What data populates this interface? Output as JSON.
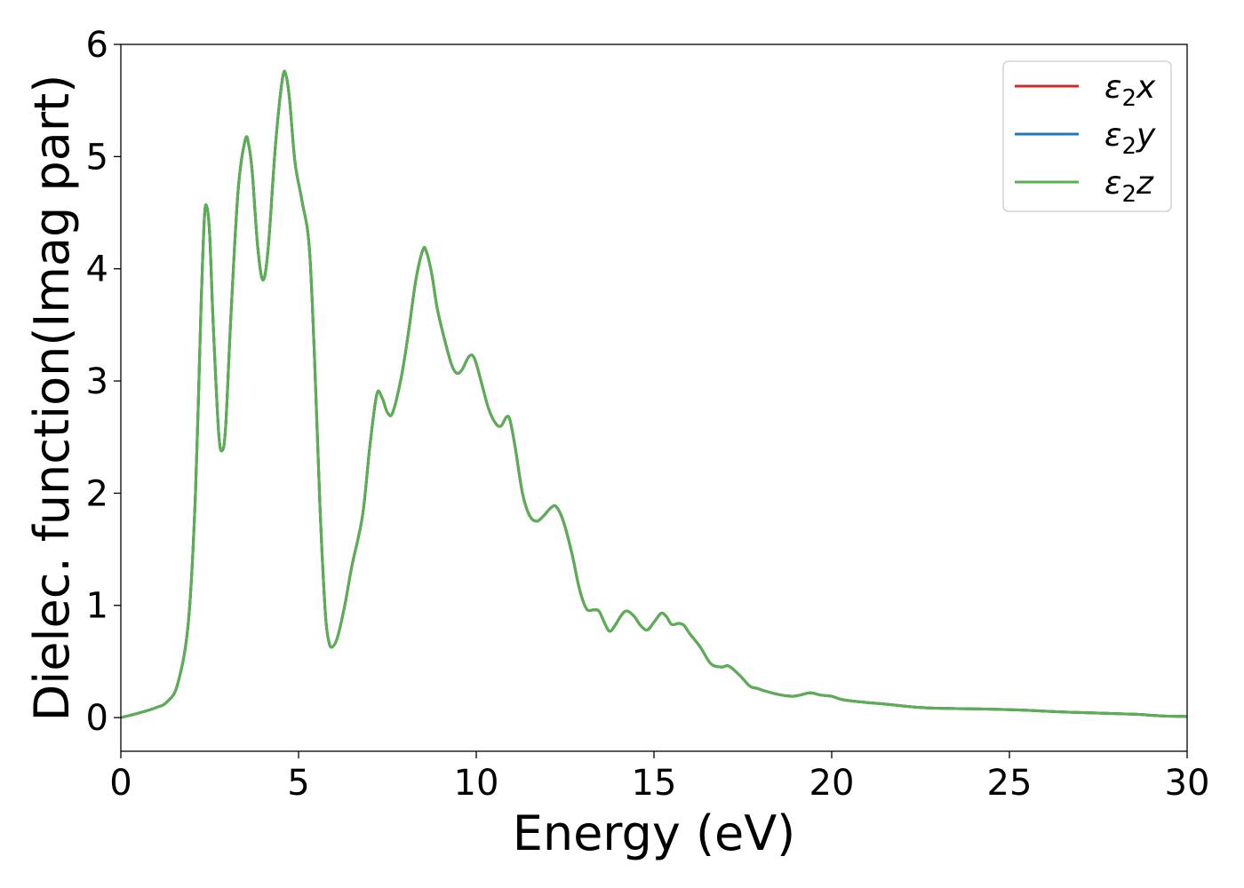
{
  "chart_data": {
    "type": "line",
    "xlabel": "Energy (eV)",
    "ylabel": "Dielec. function(Imag part)",
    "xlim": [
      0,
      30
    ],
    "ylim": [
      -0.3,
      6
    ],
    "xticks": [
      0,
      5,
      10,
      15,
      20,
      25,
      30
    ],
    "yticks": [
      0,
      1,
      2,
      3,
      4,
      5,
      6
    ],
    "grid": false,
    "legend_position": "top-right",
    "series": [
      {
        "name": "ε₂x",
        "legend": {
          "sym": "ε",
          "sub": "2",
          "axis": "x"
        },
        "color": "#d62728",
        "points": [
          [
            0,
            0
          ],
          [
            0.5,
            0.04
          ],
          [
            1,
            0.09
          ],
          [
            1.3,
            0.14
          ],
          [
            1.6,
            0.3
          ],
          [
            1.9,
            0.85
          ],
          [
            2.1,
            2.0
          ],
          [
            2.25,
            3.6
          ],
          [
            2.35,
            4.45
          ],
          [
            2.42,
            4.55
          ],
          [
            2.5,
            4.3
          ],
          [
            2.6,
            3.5
          ],
          [
            2.75,
            2.55
          ],
          [
            2.85,
            2.38
          ],
          [
            2.95,
            2.6
          ],
          [
            3.1,
            3.6
          ],
          [
            3.3,
            4.7
          ],
          [
            3.5,
            5.15
          ],
          [
            3.6,
            5.1
          ],
          [
            3.7,
            4.85
          ],
          [
            3.85,
            4.2
          ],
          [
            4.0,
            3.9
          ],
          [
            4.15,
            4.2
          ],
          [
            4.35,
            5.1
          ],
          [
            4.55,
            5.7
          ],
          [
            4.65,
            5.72
          ],
          [
            4.75,
            5.5
          ],
          [
            4.9,
            4.95
          ],
          [
            5.1,
            4.6
          ],
          [
            5.3,
            4.2
          ],
          [
            5.45,
            3.2
          ],
          [
            5.6,
            1.9
          ],
          [
            5.75,
            0.95
          ],
          [
            5.85,
            0.68
          ],
          [
            5.95,
            0.63
          ],
          [
            6.1,
            0.72
          ],
          [
            6.3,
            1.0
          ],
          [
            6.5,
            1.35
          ],
          [
            6.8,
            1.8
          ],
          [
            7.0,
            2.4
          ],
          [
            7.2,
            2.88
          ],
          [
            7.35,
            2.85
          ],
          [
            7.5,
            2.72
          ],
          [
            7.65,
            2.72
          ],
          [
            7.9,
            3.05
          ],
          [
            8.1,
            3.45
          ],
          [
            8.3,
            3.9
          ],
          [
            8.5,
            4.17
          ],
          [
            8.6,
            4.15
          ],
          [
            8.75,
            3.95
          ],
          [
            8.9,
            3.65
          ],
          [
            9.1,
            3.38
          ],
          [
            9.3,
            3.15
          ],
          [
            9.45,
            3.07
          ],
          [
            9.6,
            3.1
          ],
          [
            9.8,
            3.22
          ],
          [
            9.95,
            3.2
          ],
          [
            10.15,
            2.98
          ],
          [
            10.35,
            2.75
          ],
          [
            10.55,
            2.62
          ],
          [
            10.7,
            2.6
          ],
          [
            10.85,
            2.68
          ],
          [
            10.95,
            2.65
          ],
          [
            11.1,
            2.4
          ],
          [
            11.3,
            2.0
          ],
          [
            11.5,
            1.8
          ],
          [
            11.7,
            1.75
          ],
          [
            11.9,
            1.8
          ],
          [
            12.1,
            1.87
          ],
          [
            12.25,
            1.88
          ],
          [
            12.45,
            1.75
          ],
          [
            12.7,
            1.45
          ],
          [
            12.9,
            1.15
          ],
          [
            13.1,
            0.97
          ],
          [
            13.3,
            0.96
          ],
          [
            13.45,
            0.95
          ],
          [
            13.6,
            0.85
          ],
          [
            13.75,
            0.77
          ],
          [
            13.9,
            0.82
          ],
          [
            14.1,
            0.92
          ],
          [
            14.25,
            0.95
          ],
          [
            14.45,
            0.9
          ],
          [
            14.6,
            0.83
          ],
          [
            14.8,
            0.78
          ],
          [
            15.0,
            0.85
          ],
          [
            15.2,
            0.93
          ],
          [
            15.35,
            0.9
          ],
          [
            15.5,
            0.83
          ],
          [
            15.7,
            0.84
          ],
          [
            15.85,
            0.82
          ],
          [
            16.0,
            0.75
          ],
          [
            16.3,
            0.63
          ],
          [
            16.6,
            0.48
          ],
          [
            16.9,
            0.45
          ],
          [
            17.1,
            0.46
          ],
          [
            17.4,
            0.38
          ],
          [
            17.7,
            0.28
          ],
          [
            17.9,
            0.26
          ],
          [
            18.2,
            0.23
          ],
          [
            18.6,
            0.2
          ],
          [
            18.9,
            0.19
          ],
          [
            19.1,
            0.2
          ],
          [
            19.4,
            0.22
          ],
          [
            19.7,
            0.2
          ],
          [
            20.0,
            0.19
          ],
          [
            20.3,
            0.16
          ],
          [
            20.8,
            0.14
          ],
          [
            21.5,
            0.12
          ],
          [
            22.5,
            0.09
          ],
          [
            23.5,
            0.08
          ],
          [
            24.5,
            0.075
          ],
          [
            25.5,
            0.065
          ],
          [
            26.5,
            0.05
          ],
          [
            27.5,
            0.04
          ],
          [
            28.5,
            0.03
          ],
          [
            29.3,
            0.015
          ],
          [
            30,
            0.01
          ]
        ]
      },
      {
        "name": "ε₂y",
        "legend": {
          "sym": "ε",
          "sub": "2",
          "axis": "y"
        },
        "color": "#1f77b4",
        "same_as": 0
      },
      {
        "name": "ε₂z",
        "legend": {
          "sym": "ε",
          "sub": "2",
          "axis": "z"
        },
        "color": "#5aaf50",
        "same_as": 0
      }
    ]
  }
}
